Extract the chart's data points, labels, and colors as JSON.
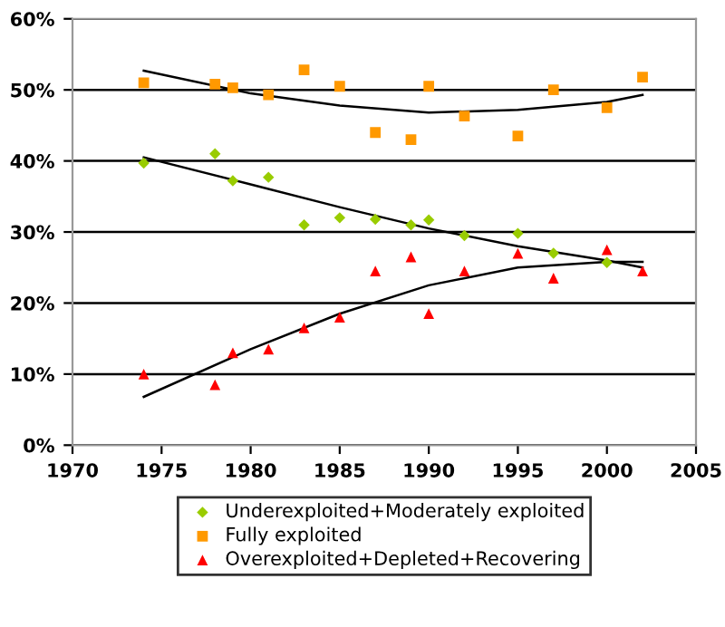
{
  "chart_data": {
    "type": "scatter",
    "xlim": [
      1970,
      2005
    ],
    "xticks": [
      1970,
      1975,
      1980,
      1985,
      1990,
      1995,
      2000,
      2005
    ],
    "ylim": [
      0,
      0.6
    ],
    "yticks": [
      {
        "value": 0,
        "label": "0%"
      },
      {
        "value": 0.1,
        "label": "10%"
      },
      {
        "value": 0.2,
        "label": "20%"
      },
      {
        "value": 0.3,
        "label": "30%"
      },
      {
        "value": 0.4,
        "label": "40%"
      },
      {
        "value": 0.5,
        "label": "50%"
      },
      {
        "value": 0.6,
        "label": "60%"
      }
    ],
    "grid": "y",
    "legend": "bottom",
    "series": [
      {
        "name": "Underexploited+Moderately exploited",
        "color": "#99cc00",
        "marker": "diamond",
        "x": [
          1974,
          1978,
          1979,
          1981,
          1983,
          1985,
          1987,
          1989,
          1990,
          1992,
          1995,
          1997,
          2000
        ],
        "values": [
          0.397,
          0.41,
          0.372,
          0.377,
          0.31,
          0.32,
          0.318,
          0.31,
          0.317,
          0.295,
          0.298,
          0.27,
          0.257
        ]
      },
      {
        "name": "Fully exploited",
        "color": "#ff9900",
        "marker": "square",
        "x": [
          1974,
          1978,
          1979,
          1981,
          1983,
          1985,
          1987,
          1989,
          1990,
          1992,
          1995,
          1997,
          2000,
          2002
        ],
        "values": [
          0.51,
          0.508,
          0.503,
          0.493,
          0.528,
          0.505,
          0.44,
          0.43,
          0.505,
          0.463,
          0.435,
          0.5,
          0.475,
          0.518
        ]
      },
      {
        "name": "Overexploited+Depleted+Recovering",
        "color": "#ff0000",
        "marker": "triangle",
        "x": [
          1974,
          1978,
          1979,
          1981,
          1983,
          1985,
          1987,
          1989,
          1990,
          1992,
          1995,
          1997,
          2000,
          2002
        ],
        "values": [
          0.1,
          0.085,
          0.13,
          0.135,
          0.165,
          0.18,
          0.245,
          0.265,
          0.185,
          0.245,
          0.27,
          0.235,
          0.275,
          0.245
        ]
      },
      {
        "type": "line",
        "color": "#000000",
        "marker": "none",
        "x": [
          1974,
          1980,
          1985,
          1990,
          1995,
          2000,
          2002
        ],
        "values": [
          0.405,
          0.367,
          0.335,
          0.305,
          0.28,
          0.26,
          0.25
        ]
      },
      {
        "type": "line",
        "color": "#000000",
        "marker": "none",
        "x": [
          1974,
          1980,
          1985,
          1990,
          1995,
          2000,
          2002
        ],
        "values": [
          0.527,
          0.495,
          0.478,
          0.468,
          0.472,
          0.483,
          0.493
        ]
      },
      {
        "type": "line",
        "color": "#000000",
        "marker": "none",
        "x": [
          1974,
          1980,
          1985,
          1990,
          1995,
          2000,
          2002
        ],
        "values": [
          0.068,
          0.135,
          0.185,
          0.225,
          0.25,
          0.258,
          0.258
        ]
      }
    ]
  }
}
